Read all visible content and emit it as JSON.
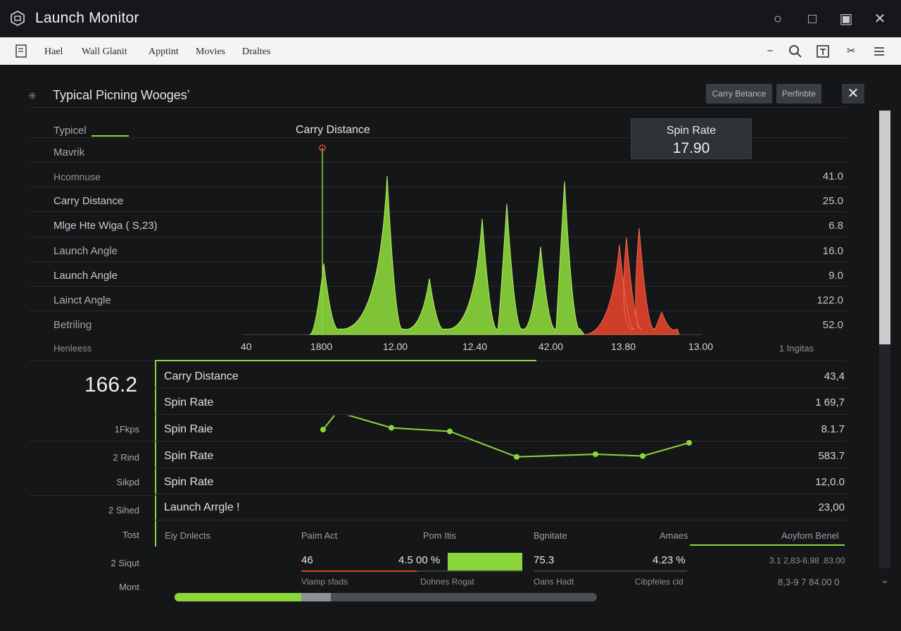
{
  "window": {
    "title": "Launch Monitor"
  },
  "menu": {
    "items": [
      "Hael",
      "Wall Glanit",
      "Apptint",
      "Movies",
      "Draltes"
    ]
  },
  "panel": {
    "title": "Typical Picning Woogesʼ",
    "buttons": [
      "Carry Betance",
      "Perfinbte"
    ]
  },
  "left_labels": [
    "Typicel",
    "Mavrik",
    "Hcomnuse",
    "Carry Distance",
    "Mlge Hte Wiga ( S,23)",
    "Launch Angle",
    "Launch Angle",
    "Lainct Angle",
    "Betriling",
    "Henleess"
  ],
  "right_values": [
    "41.0",
    "25.0",
    "6.8",
    "16.0",
    "9.0",
    "122.0",
    "52.0",
    "1 Ingitas"
  ],
  "chart_title": "Carry Distance",
  "tooltip": {
    "label": "Spin Rate",
    "value": "17.90"
  },
  "chart_data": {
    "type": "area",
    "title": "Carry Distance",
    "x_tick_labels": [
      "40",
      "1800",
      "12.00",
      "12.40",
      "42.00",
      "13.80",
      "13.00"
    ],
    "series": [
      {
        "color": "#8bd63a",
        "peaks": [
          0.38,
          0.85,
          0.3,
          0.62,
          0.7,
          0.47,
          0.82
        ]
      },
      {
        "color": "#e2432a",
        "peaks": [
          0.48,
          0.52,
          0.57,
          0.12
        ]
      }
    ],
    "marker_x": "1800"
  },
  "big_value": "166.2",
  "side_labels": [
    "1Fkps",
    "2 Rind",
    "Sikpd",
    "2 Sihed",
    "Tost",
    "2 Siqut",
    "Mont"
  ],
  "table_rows": [
    {
      "label": "Carry Distance",
      "value": "43,4"
    },
    {
      "label": "Spin Rate",
      "value": "1 69,7"
    },
    {
      "label": "Spin Raie",
      "value": "8.1.7"
    },
    {
      "label": "Spin Rate",
      "value": "583.7"
    },
    {
      "label": "Spin Rate",
      "value": "12,0.0"
    },
    {
      "label": "Launch Arrgle !",
      "value": "23,00"
    }
  ],
  "line_chart": {
    "type": "line",
    "values": [
      2.0,
      3.0,
      2.1,
      1.9,
      0.45,
      0.6,
      0.5,
      1.25
    ]
  },
  "footer": {
    "headers": [
      "Eiy Dnlects",
      "Paim Act",
      "Pom Itis",
      "Bgnitate",
      "Amaes",
      "Aoyforn Benel"
    ],
    "values": [
      "46",
      "4.5 00 %",
      "75.3",
      "4.23 %",
      "3.1 2,83-6.98 .83.00"
    ],
    "subs": [
      "Vlamp sfads",
      "Dohnes Rogat",
      "Oans Hadt",
      "Cibpfeles cld",
      "8,3-9 7 84.00 0"
    ]
  },
  "progress": {
    "green": 0.3,
    "light": 0.07
  },
  "colors": {
    "accent": "#8bd63a",
    "warn": "#e2432a"
  }
}
